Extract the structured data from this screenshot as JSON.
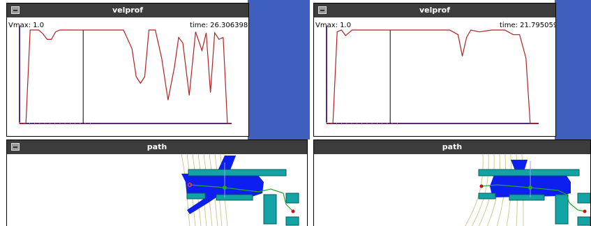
{
  "windows": [
    {
      "velprof": {
        "title": "velprof",
        "vmax_label": "Vmax: 1.0",
        "time_label": "time: 26.306398",
        "chart_data": {
          "type": "line",
          "title": "",
          "xlabel": "",
          "ylabel": "",
          "ylim": [
            0,
            1.0
          ],
          "xlim": [
            0,
            1
          ],
          "series": [
            {
              "x": [
                0,
                0.03,
                0.05,
                0.09,
                0.11,
                0.13,
                0.15,
                0.17,
                0.19,
                0.24,
                0.29,
                0.33,
                0.37,
                0.41,
                0.45,
                0.49,
                0.53,
                0.55,
                0.57,
                0.59,
                0.61,
                0.64,
                0.67,
                0.7,
                0.73,
                0.75,
                0.77,
                0.8,
                0.83,
                0.86,
                0.88,
                0.9,
                0.92,
                0.94,
                0.96,
                0.98,
                1.0
              ],
              "y": [
                0,
                0,
                1.0,
                1.0,
                0.96,
                0.9,
                0.9,
                0.98,
                1.0,
                1.0,
                1.0,
                1.0,
                1.0,
                1.0,
                1.0,
                1.0,
                0.8,
                0.5,
                0.43,
                0.5,
                1.0,
                1.0,
                0.7,
                0.25,
                0.6,
                0.92,
                0.86,
                0.3,
                0.98,
                0.78,
                0.97,
                0.33,
                0.97,
                0.9,
                0.92,
                0.0,
                0.0
              ]
            }
          ],
          "markers": [
            0.3
          ]
        }
      },
      "path": {
        "title": "path"
      }
    },
    {
      "velprof": {
        "title": "velprof",
        "vmax_label": "Vmax: 1.0",
        "time_label": "time: 21.795059",
        "chart_data": {
          "type": "line",
          "title": "",
          "xlabel": "",
          "ylabel": "",
          "ylim": [
            0,
            1.0
          ],
          "xlim": [
            0,
            1
          ],
          "series": [
            {
              "x": [
                0,
                0.03,
                0.05,
                0.07,
                0.09,
                0.12,
                0.17,
                0.22,
                0.32,
                0.42,
                0.52,
                0.58,
                0.62,
                0.64,
                0.66,
                0.68,
                0.72,
                0.78,
                0.84,
                0.88,
                0.91,
                0.94,
                0.96,
                0.98,
                1.0
              ],
              "y": [
                0,
                0,
                0.98,
                1.0,
                0.94,
                1.0,
                1.0,
                1.0,
                1.0,
                1.0,
                1.0,
                1.0,
                0.95,
                0.72,
                0.92,
                1.0,
                0.98,
                1.0,
                1.0,
                0.95,
                0.95,
                0.7,
                0.0,
                0.0,
                0.0
              ]
            }
          ],
          "markers": [
            0.3
          ]
        }
      },
      "path": {
        "title": "path"
      }
    }
  ],
  "colors": {
    "desktop": "#3f5fbf",
    "titlebar": "#3c3c3c",
    "curve": "#b22222",
    "axis": "#5a2a7a",
    "obstacle": "#12a4a4",
    "robot": "#0c1ef0",
    "path_line": "#22aa22"
  },
  "icons": [
    "window-menu-icon"
  ]
}
